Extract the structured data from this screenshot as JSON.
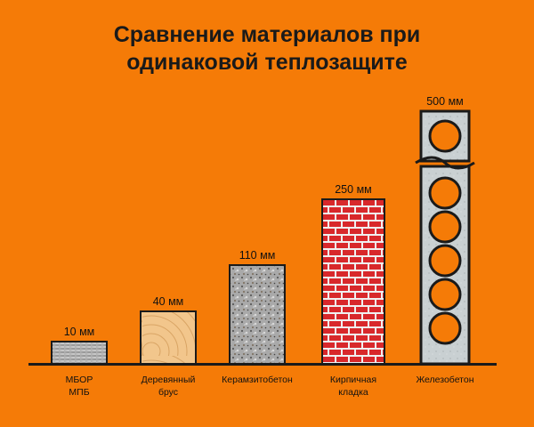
{
  "chart_data": {
    "type": "bar",
    "title_lines": [
      "Сравнение материалов при",
      "одинаковой теплозащите"
    ],
    "categories": [
      {
        "lines": [
          "МБОР",
          "МПБ"
        ],
        "texture": "mbor"
      },
      {
        "lines": [
          "Деревянный",
          "брус"
        ],
        "texture": "wood"
      },
      {
        "lines": [
          "Керамзитобетон"
        ],
        "texture": "aggregate"
      },
      {
        "lines": [
          "Кирпичная",
          "кладка"
        ],
        "texture": "brick"
      },
      {
        "lines": [
          "Железобетон"
        ],
        "texture": "concrete"
      }
    ],
    "values": [
      10,
      40,
      110,
      250,
      500
    ],
    "value_labels": [
      "10 мм",
      "40 мм",
      "110 мм",
      "250 мм",
      "500 мм"
    ],
    "unit": "мм",
    "axis_break_on": "Железобетон"
  },
  "colors": {
    "background": "#f57b07",
    "outline": "#1a1a1a",
    "mbor": "#9a9a9a",
    "wood": "#f2c68c",
    "aggregate": "#a8a8a8",
    "brick": "#d8282b",
    "mortar": "#f2f2f2",
    "concrete": "#c9d0d2"
  }
}
